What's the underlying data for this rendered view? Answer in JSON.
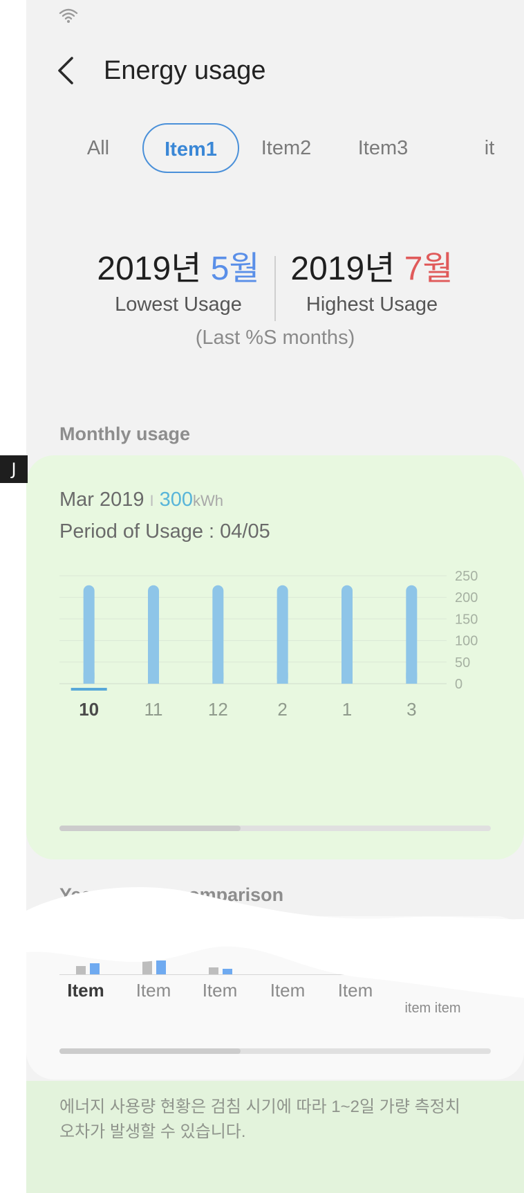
{
  "edge_tab": {
    "label": "J"
  },
  "header": {
    "title": "Energy usage"
  },
  "tabs": [
    {
      "label": "All",
      "selected": false
    },
    {
      "label": "Item1",
      "selected": true
    },
    {
      "label": "Item2",
      "selected": false
    },
    {
      "label": "Item3",
      "selected": false
    },
    {
      "label": "it",
      "selected": false
    }
  ],
  "summary": {
    "lowest": {
      "year": "2019년 ",
      "month": "5월",
      "label": "Lowest Usage"
    },
    "highest": {
      "year": "2019년 ",
      "month": "7월",
      "label": "Highest Usage"
    },
    "note": "(Last %S months)"
  },
  "monthly": {
    "section_title": "Monthly usage",
    "date": "Mar 2019",
    "separator": "I",
    "value": "300",
    "unit": "kWh",
    "period": "Period of Usage : 04/05",
    "scroll_fraction": 0.42
  },
  "chart_data": {
    "type": "bar",
    "categories": [
      "10",
      "11",
      "12",
      "2",
      "1",
      "3"
    ],
    "values": [
      228,
      228,
      228,
      228,
      228,
      228
    ],
    "selected_category": "10",
    "y_ticks": [
      "250",
      "200",
      "150",
      "100",
      "50",
      "0"
    ],
    "ylim": [
      0,
      250
    ],
    "grid": true,
    "bar_color": "#8ec5e8"
  },
  "yoy": {
    "section_title": "Year-on-year comparison",
    "items": [
      "Item",
      "Item",
      "Item",
      "Item",
      "Item",
      "item item"
    ],
    "scroll_fraction": 0.42
  },
  "footer": {
    "line1": "에너지 사용량 현황은 검침 시기에 따라 1~2일 가량 측정치",
    "line2": "오차가 발생할 수 있습니다."
  },
  "colors": {
    "accent": "#3a87d6",
    "lowest": "#5a8fe8",
    "highest": "#e05a5a",
    "usage_value": "#58b5d9"
  }
}
